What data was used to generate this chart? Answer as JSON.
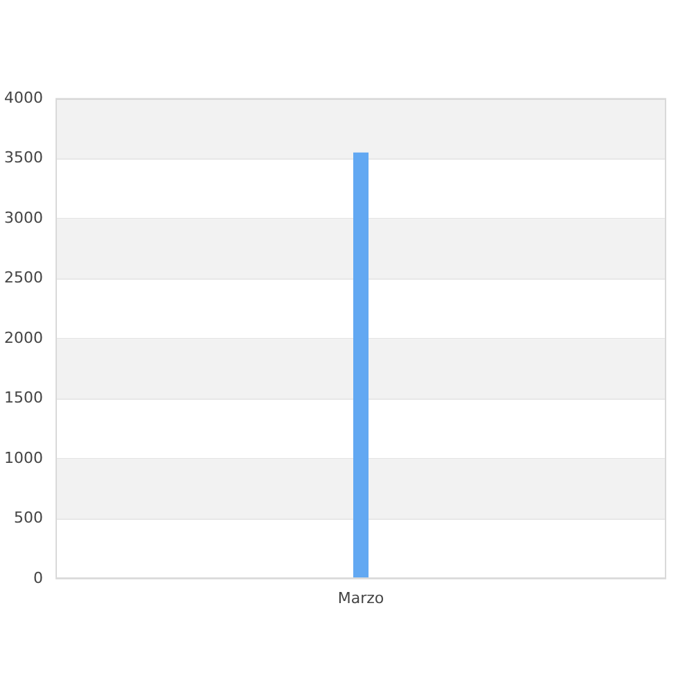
{
  "chart_data": {
    "type": "bar",
    "categories": [
      "Marzo"
    ],
    "values": [
      3550
    ],
    "color": "#62a8f2",
    "ylim": [
      0,
      4000
    ],
    "yticks": [
      0,
      500,
      1000,
      1500,
      2000,
      2500,
      3000,
      3500,
      4000
    ],
    "grid": "y"
  }
}
